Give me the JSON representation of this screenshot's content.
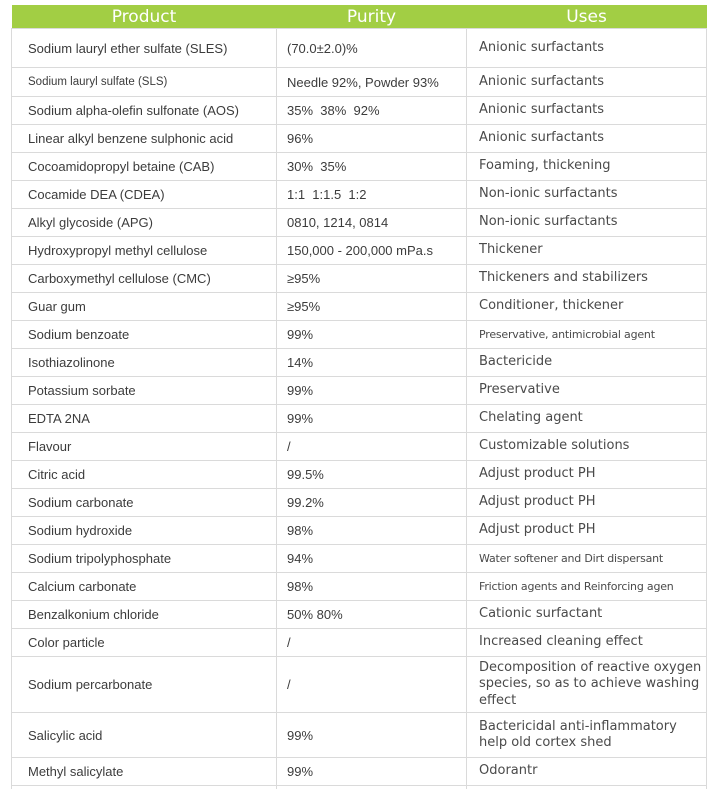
{
  "colors": {
    "header_bg": "#a2ce44",
    "header_text": "#ffffff",
    "border": "#dadada",
    "body_text": "#3c3c3c"
  },
  "header": {
    "columns": [
      "Product",
      "Purity",
      "Uses"
    ]
  },
  "table": {
    "column_keys": [
      "product",
      "purity",
      "uses"
    ],
    "rows": [
      {
        "product": "Sodium lauryl ether sulfate (SLES)",
        "purity": "(70.0±2.0)%",
        "uses": "Anionic surfactants"
      },
      {
        "product": "Sodium lauryl sulfate (SLS)",
        "purity": "Needle 92%, Powder 93%",
        "uses": "Anionic surfactants"
      },
      {
        "product": "Sodium alpha-olefin sulfonate (AOS)",
        "purity": "35%  38%  92%",
        "uses": "Anionic surfactants"
      },
      {
        "product": "Linear alkyl benzene sulphonic acid",
        "purity": "96%",
        "uses": "Anionic surfactants"
      },
      {
        "product": "Cocoamidopropyl betaine (CAB)",
        "purity": "30%  35%",
        "uses": "Foaming, thickening"
      },
      {
        "product": "Cocamide DEA (CDEA)",
        "purity": "1:1  1:1.5  1:2",
        "uses": "Non-ionic surfactants"
      },
      {
        "product": "Alkyl glycoside (APG)",
        "purity": "0810, 1214, 0814",
        "uses": "Non-ionic surfactants"
      },
      {
        "product": "Hydroxypropyl methyl cellulose",
        "purity": "150,000 - 200,000 mPa.s",
        "uses": "Thickener"
      },
      {
        "product": "Carboxymethyl cellulose (CMC)",
        "purity": "≥95%",
        "uses": "Thickeners and stabilizers"
      },
      {
        "product": "Guar gum",
        "purity": "≥95%",
        "uses": "Conditioner, thickener"
      },
      {
        "product": "Sodium benzoate",
        "purity": "99%",
        "uses": "Preservative, antimicrobial agent"
      },
      {
        "product": "Isothiazolinone",
        "purity": "14%",
        "uses": "Bactericide"
      },
      {
        "product": "Potassium sorbate",
        "purity": "99%",
        "uses": "Preservative"
      },
      {
        "product": "EDTA 2NA",
        "purity": "99%",
        "uses": "Chelating agent"
      },
      {
        "product": "Flavour",
        "purity": "/",
        "uses": "Customizable solutions"
      },
      {
        "product": "Citric acid",
        "purity": "99.5%",
        "uses": "Adjust product PH"
      },
      {
        "product": "Sodium carbonate",
        "purity": "99.2%",
        "uses": "Adjust product PH"
      },
      {
        "product": "Sodium hydroxide",
        "purity": "98%",
        "uses": "Adjust product PH"
      },
      {
        "product": "Sodium tripolyphosphate",
        "purity": "94%",
        "uses": "Water softener and Dirt dispersant"
      },
      {
        "product": "Calcium carbonate",
        "purity": "98%",
        "uses": "Friction agents and Reinforcing agen"
      },
      {
        "product": "Benzalkonium chloride",
        "purity": "50% 80%",
        "uses": "Cationic surfactant"
      },
      {
        "product": "Color particle",
        "purity": "/",
        "uses": "Increased cleaning effect"
      },
      {
        "product": "Sodium percarbonate",
        "purity": "/",
        "uses": "Decomposition of reactive oxygen species, so as to achieve washing effect"
      },
      {
        "product": "Salicylic acid",
        "purity": "99%",
        "uses": "Bactericidal anti-inflammatory help old cortex shed"
      },
      {
        "product": "Methyl salicylate",
        "purity": "99%",
        "uses": "Odorantr"
      }
    ]
  }
}
